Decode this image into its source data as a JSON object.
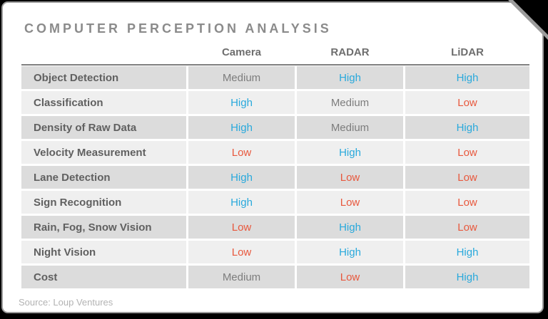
{
  "title": "COMPUTER PERCEPTION ANALYSIS",
  "source": "Source: Loup Ventures",
  "chart_data": {
    "type": "table",
    "title": "COMPUTER PERCEPTION ANALYSIS",
    "columns": [
      "Camera",
      "RADAR",
      "LiDAR"
    ],
    "rows": [
      {
        "label": "Object Detection",
        "values": [
          "Medium",
          "High",
          "High"
        ]
      },
      {
        "label": "Classification",
        "values": [
          "High",
          "Medium",
          "Low"
        ]
      },
      {
        "label": "Density of Raw Data",
        "values": [
          "High",
          "Medium",
          "High"
        ]
      },
      {
        "label": "Velocity Measurement",
        "values": [
          "Low",
          "High",
          "Low"
        ]
      },
      {
        "label": "Lane Detection",
        "values": [
          "High",
          "Low",
          "Low"
        ]
      },
      {
        "label": "Sign Recognition",
        "values": [
          "High",
          "Low",
          "Low"
        ]
      },
      {
        "label": "Rain, Fog, Snow Vision",
        "values": [
          "Low",
          "High",
          "Low"
        ]
      },
      {
        "label": "Night Vision",
        "values": [
          "Low",
          "High",
          "High"
        ]
      },
      {
        "label": "Cost",
        "values": [
          "Medium",
          "Low",
          "High"
        ]
      }
    ],
    "source": "Source: Loup Ventures",
    "value_colors": {
      "High": "#29a9dc",
      "Medium": "#7d7d7d",
      "Low": "#e8583d"
    },
    "row_band_colors": [
      "#dcdcdc",
      "#efefef"
    ],
    "accent_border_color": "#7f7f7f"
  }
}
